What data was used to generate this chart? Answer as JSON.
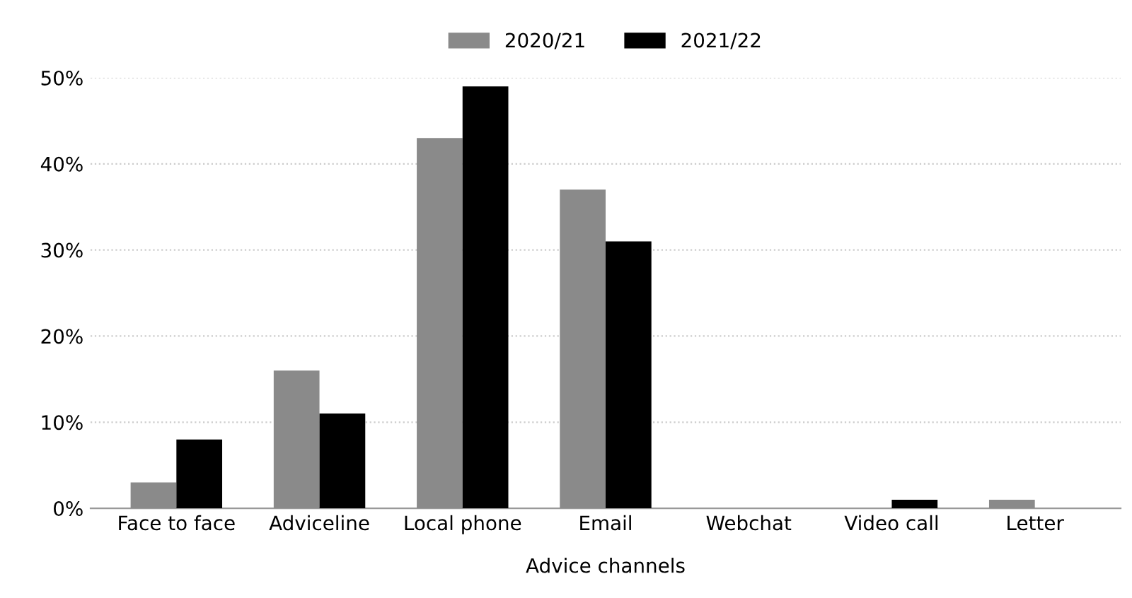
{
  "chart_data": {
    "type": "bar",
    "xlabel": "Advice channels",
    "categories": [
      "Face to face",
      "Adviceline",
      "Local phone",
      "Email",
      "Webchat",
      "Video call",
      "Letter"
    ],
    "series": [
      {
        "name": "2020/21",
        "color": "#8a8a8a",
        "values": [
          3,
          16,
          43,
          37,
          0,
          0,
          1
        ]
      },
      {
        "name": "2021/22",
        "color": "#000000",
        "values": [
          8,
          11,
          49,
          31,
          0,
          1,
          0
        ]
      }
    ],
    "ylim": [
      0,
      50
    ],
    "yticks": [
      {
        "value": 0,
        "label": "0%"
      },
      {
        "value": 10,
        "label": "10%"
      },
      {
        "value": 20,
        "label": "20%"
      },
      {
        "value": 30,
        "label": "30%"
      },
      {
        "value": 40,
        "label": "40%"
      },
      {
        "value": 50,
        "label": "50%"
      }
    ],
    "grid": "y",
    "legend": "top"
  }
}
